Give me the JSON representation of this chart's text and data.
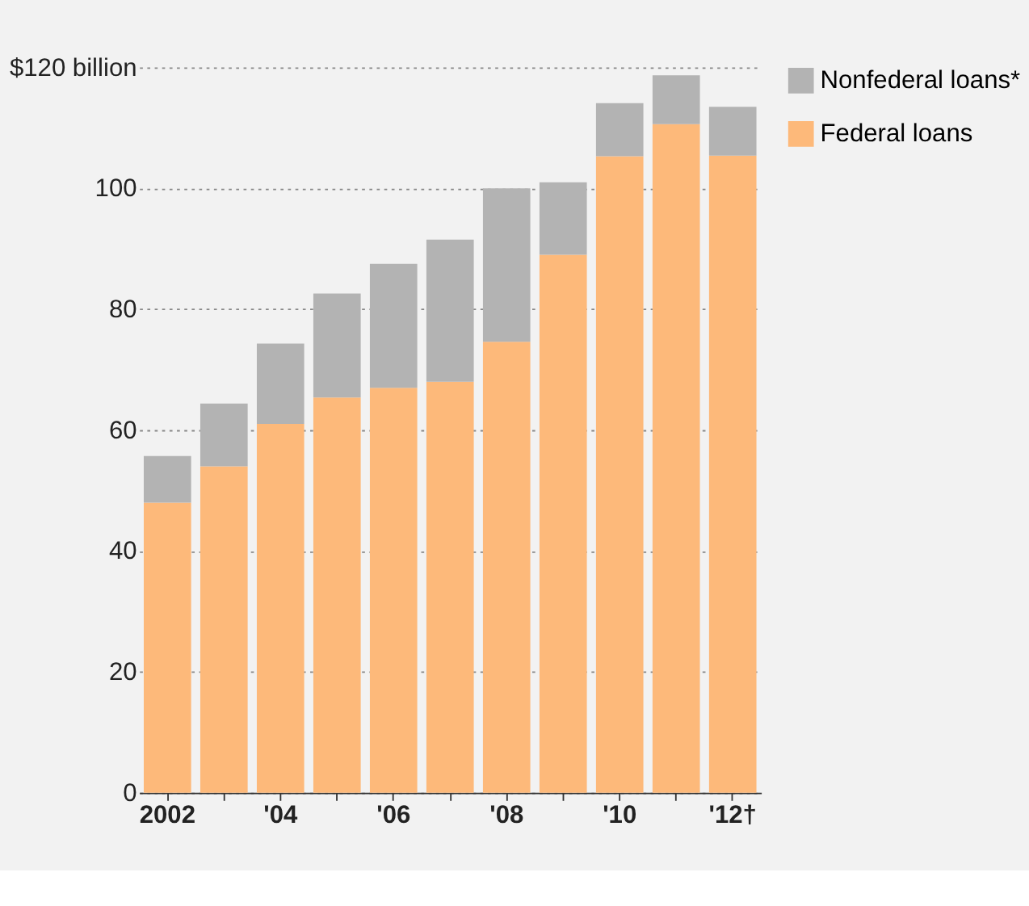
{
  "chart_data": {
    "type": "bar",
    "stacked": true,
    "categories": [
      "2002",
      null,
      "'04",
      null,
      "'06",
      null,
      "'08",
      null,
      "'10",
      null,
      "'12†"
    ],
    "series": [
      {
        "name": "Federal loans",
        "color": "#fdb97a",
        "values": [
          48,
          54,
          61,
          65.4,
          67,
          68,
          74.6,
          89,
          105.3,
          110.6,
          105.4
        ]
      },
      {
        "name": "Nonfederal loans*",
        "color": "#b3b3b3",
        "values": [
          7.7,
          10.4,
          13.3,
          17.2,
          20.5,
          23.5,
          25.4,
          12,
          8.8,
          8.1,
          8.1
        ]
      }
    ],
    "ylim": [
      0,
      120
    ],
    "yticks": [
      0,
      20,
      40,
      60,
      80,
      100,
      {
        "value": 120,
        "label": "$120 billion"
      }
    ],
    "grid": "y",
    "legend": "top right"
  }
}
